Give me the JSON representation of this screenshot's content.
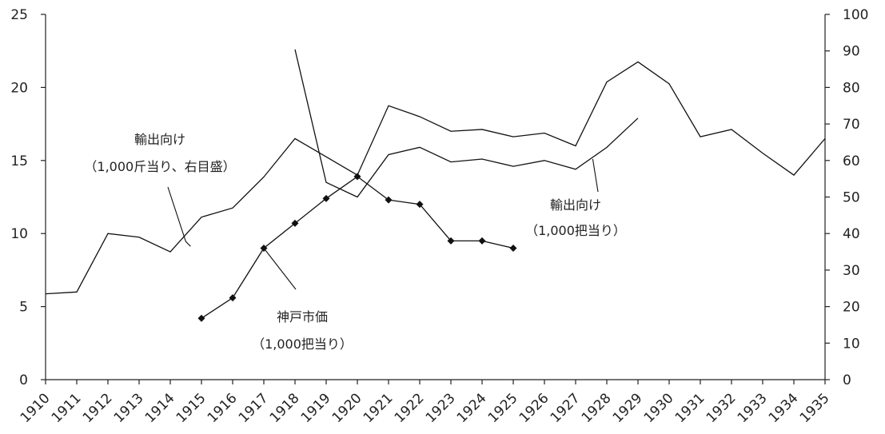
{
  "chart_data": {
    "type": "line",
    "title": "",
    "xlabel": "",
    "ylabel_left": "",
    "ylabel_right": "",
    "x": [
      1910,
      1911,
      1912,
      1913,
      1914,
      1915,
      1916,
      1917,
      1918,
      1919,
      1920,
      1921,
      1922,
      1923,
      1924,
      1925,
      1926,
      1927,
      1928,
      1929,
      1930,
      1931,
      1932,
      1933,
      1934,
      1935
    ],
    "left_axis": {
      "min": 0,
      "max": 25,
      "ticks": [
        0,
        5,
        10,
        15,
        20,
        25
      ]
    },
    "right_axis": {
      "min": 0,
      "max": 100,
      "ticks": [
        0,
        10,
        20,
        30,
        40,
        50,
        60,
        70,
        80,
        90,
        100
      ]
    },
    "series": [
      {
        "id": "export-right",
        "axis": "right",
        "marker": "none",
        "points": [
          [
            1910,
            23.5
          ],
          [
            1911,
            24
          ],
          [
            1912,
            40
          ],
          [
            1913,
            39
          ],
          [
            1914,
            35
          ],
          [
            1915,
            44.5
          ],
          [
            1916,
            47
          ],
          [
            1917,
            55.5
          ],
          [
            1918,
            66
          ],
          [
            1919,
            61
          ],
          [
            1920,
            56
          ],
          [
            1921,
            75
          ],
          [
            1922,
            72
          ],
          [
            1923,
            68
          ],
          [
            1924,
            68.5
          ],
          [
            1925,
            66.5
          ],
          [
            1926,
            67.5
          ],
          [
            1927,
            64
          ],
          [
            1928,
            81.5
          ],
          [
            1929,
            87
          ],
          [
            1930,
            81
          ],
          [
            1931,
            66.5
          ],
          [
            1932,
            68.5
          ],
          [
            1933,
            62
          ],
          [
            1934,
            56
          ],
          [
            1935,
            66
          ]
        ]
      },
      {
        "id": "export-left",
        "axis": "left",
        "marker": "none",
        "points": [
          [
            1918,
            22.6
          ],
          [
            1919,
            13.5
          ],
          [
            1920,
            12.5
          ],
          [
            1921,
            15.4
          ],
          [
            1922,
            15.9
          ],
          [
            1923,
            14.9
          ],
          [
            1924,
            15.1
          ],
          [
            1925,
            14.6
          ],
          [
            1926,
            15
          ],
          [
            1927,
            14.4
          ],
          [
            1928,
            15.9
          ],
          [
            1929,
            17.9
          ]
        ]
      },
      {
        "id": "kobe-price",
        "axis": "left",
        "marker": "diamond",
        "points": [
          [
            1915,
            4.2
          ],
          [
            1916,
            5.6
          ],
          [
            1917,
            9
          ],
          [
            1918,
            10.7
          ],
          [
            1919,
            12.4
          ],
          [
            1920,
            13.9
          ],
          [
            1921,
            12.3
          ],
          [
            1922,
            12
          ],
          [
            1923,
            9.5
          ],
          [
            1924,
            9.5
          ],
          [
            1925,
            9
          ]
        ]
      }
    ],
    "annotations": [
      {
        "id": "ann-export-right",
        "lines": [
          "輸出向け",
          "（1,000斤当り、右目盛）"
        ]
      },
      {
        "id": "ann-export-left",
        "lines": [
          "輸出向け",
          "（1,000把当り）"
        ]
      },
      {
        "id": "ann-kobe",
        "lines": [
          "神戸市価",
          "（1,000把当り）"
        ]
      }
    ]
  }
}
